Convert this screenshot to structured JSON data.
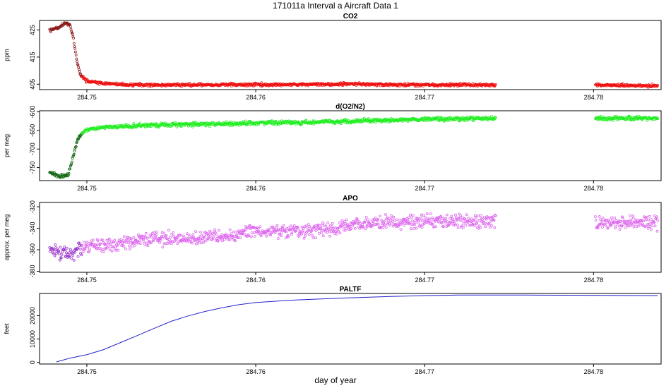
{
  "figure": {
    "title": "171011a   Interval a Aircraft Data 1",
    "xlabel": "day of year"
  },
  "chart_data": [
    {
      "type": "scatter",
      "title": "CO2",
      "ylabel": "ppm",
      "xlim": [
        284.7472,
        284.784
      ],
      "ylim": [
        403.0,
        428.5
      ],
      "yticks": [
        405,
        415,
        425
      ],
      "xticks": [
        284.75,
        284.76,
        284.77,
        284.78
      ],
      "gap": [
        284.7742,
        284.7801
      ],
      "colors": {
        "main": "#ee1111",
        "early": "#8b1a1a"
      },
      "trend": [
        [
          284.7478,
          424.8
        ],
        [
          284.7483,
          425.8
        ],
        [
          284.7486,
          427.0
        ],
        [
          284.7488,
          427.6
        ],
        [
          284.749,
          426.8
        ],
        [
          284.7492,
          422.0
        ],
        [
          284.7494,
          414.0
        ],
        [
          284.7496,
          408.4
        ],
        [
          284.75,
          406.2
        ],
        [
          284.751,
          405.2
        ],
        [
          284.7525,
          404.7
        ],
        [
          284.76,
          404.8
        ],
        [
          284.765,
          405.0
        ],
        [
          284.77,
          404.7
        ],
        [
          284.7742,
          404.7
        ],
        [
          284.7801,
          404.7
        ],
        [
          284.7838,
          404.4
        ]
      ],
      "noise": 0.45
    },
    {
      "type": "scatter",
      "title": "d(O2/N2)",
      "ylabel": "per meg",
      "xlim": [
        284.7472,
        284.784
      ],
      "ylim": [
        -785,
        -597
      ],
      "yticks": [
        -750,
        -700,
        -650,
        -600
      ],
      "xticks": [
        284.75,
        284.76,
        284.77,
        284.78
      ],
      "gap": [
        284.7742,
        284.7801
      ],
      "colors": {
        "main": "#22ee22",
        "early": "#116611"
      },
      "trend": [
        [
          284.7478,
          -762
        ],
        [
          284.7482,
          -772
        ],
        [
          284.7486,
          -773
        ],
        [
          284.7489,
          -770
        ],
        [
          284.7491,
          -740
        ],
        [
          284.7493,
          -700
        ],
        [
          284.7495,
          -668
        ],
        [
          284.75,
          -648
        ],
        [
          284.751,
          -642
        ],
        [
          284.753,
          -637
        ],
        [
          284.756,
          -634
        ],
        [
          284.76,
          -630
        ],
        [
          284.763,
          -628
        ],
        [
          284.765,
          -626
        ],
        [
          284.77,
          -620
        ],
        [
          284.7742,
          -618
        ],
        [
          284.7801,
          -618
        ],
        [
          284.7838,
          -617
        ]
      ],
      "noise": 4.5
    },
    {
      "type": "scatter",
      "title": "APO",
      "ylabel": "approx. per meg",
      "xlim": [
        284.7472,
        284.784
      ],
      "ylim": [
        -381,
        -316
      ],
      "yticks": [
        -380,
        -360,
        -340,
        -320
      ],
      "xticks": [
        284.75,
        284.76,
        284.77,
        284.78
      ],
      "gap": [
        284.7742,
        284.7801
      ],
      "colors": {
        "main": "#dd66ee",
        "early": "#9933cc"
      },
      "trend": [
        [
          284.7478,
          -362
        ],
        [
          284.749,
          -363
        ],
        [
          284.75,
          -357
        ],
        [
          284.752,
          -354
        ],
        [
          284.754,
          -350
        ],
        [
          284.756,
          -350
        ],
        [
          284.758,
          -347
        ],
        [
          284.76,
          -343
        ],
        [
          284.763,
          -343
        ],
        [
          284.765,
          -338
        ],
        [
          284.77,
          -333
        ],
        [
          284.7742,
          -333
        ],
        [
          284.7801,
          -334
        ],
        [
          284.7838,
          -335
        ]
      ],
      "noise": 5.5
    },
    {
      "type": "line",
      "title": "PALTF",
      "ylabel": "feet",
      "xlim": [
        284.7472,
        284.784
      ],
      "ylim": [
        -700,
        29500
      ],
      "yticks": [
        0,
        10000,
        20000
      ],
      "xticks": [
        284.75,
        284.76,
        284.77,
        284.78
      ],
      "colors": {
        "main": "#2222cc"
      },
      "points": [
        [
          284.7482,
          200
        ],
        [
          284.749,
          1800
        ],
        [
          284.75,
          3300
        ],
        [
          284.751,
          5500
        ],
        [
          284.752,
          8500
        ],
        [
          284.753,
          11500
        ],
        [
          284.754,
          14600
        ],
        [
          284.755,
          17600
        ],
        [
          284.756,
          19900
        ],
        [
          284.757,
          21800
        ],
        [
          284.758,
          23400
        ],
        [
          284.759,
          24700
        ],
        [
          284.76,
          25600
        ],
        [
          284.762,
          26600
        ],
        [
          284.765,
          27500
        ],
        [
          284.768,
          28200
        ],
        [
          284.77,
          28600
        ],
        [
          284.772,
          28800
        ],
        [
          284.776,
          28800
        ],
        [
          284.78,
          28700
        ],
        [
          284.7838,
          28600
        ]
      ]
    }
  ]
}
